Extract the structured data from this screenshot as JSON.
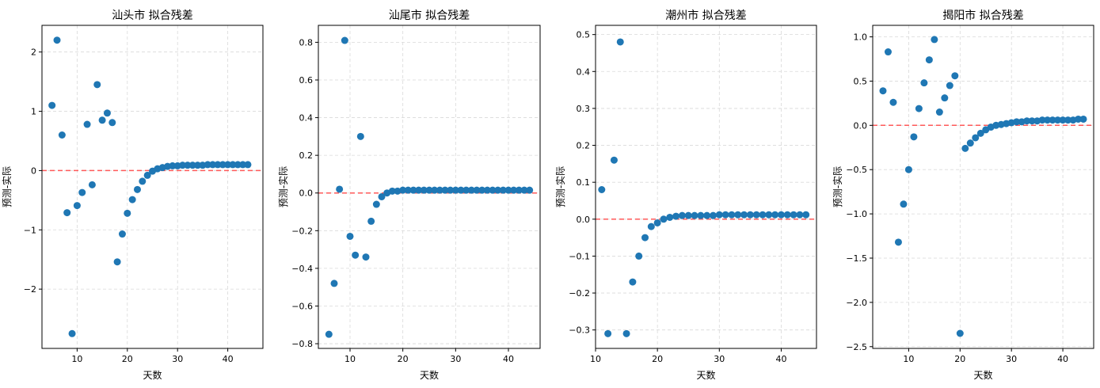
{
  "chart_data": [
    {
      "type": "scatter",
      "title": "汕头市 拟合残差",
      "xlabel": "天数",
      "ylabel": "预测-实际",
      "xlim": [
        3,
        47
      ],
      "ylim": [
        -3.0,
        2.45
      ],
      "xticks": [
        10,
        20,
        30,
        40
      ],
      "yticks": [
        -2,
        -1,
        0,
        1,
        2
      ],
      "reference_line": 0,
      "grid": true,
      "x": [
        5,
        6,
        7,
        8,
        9,
        10,
        11,
        12,
        13,
        14,
        15,
        16,
        17,
        18,
        19,
        20,
        21,
        22,
        23,
        24,
        25,
        26,
        27,
        28,
        29,
        30,
        31,
        32,
        33,
        34,
        35,
        36,
        37,
        38,
        39,
        40,
        41,
        42,
        43,
        44
      ],
      "y": [
        1.1,
        2.2,
        0.6,
        -0.71,
        -2.75,
        -0.59,
        -0.37,
        0.78,
        -0.24,
        1.45,
        0.85,
        0.97,
        0.81,
        -1.54,
        -1.07,
        -0.72,
        -0.49,
        -0.32,
        -0.18,
        -0.08,
        -0.01,
        0.03,
        0.05,
        0.07,
        0.08,
        0.08,
        0.09,
        0.09,
        0.09,
        0.09,
        0.09,
        0.1,
        0.1,
        0.1,
        0.1,
        0.1,
        0.1,
        0.1,
        0.1,
        0.1
      ]
    },
    {
      "type": "scatter",
      "title": "汕尾市 拟合残差",
      "xlabel": "天数",
      "ylabel": "预测-实际",
      "xlim": [
        4,
        46
      ],
      "ylim": [
        -0.825,
        0.89
      ],
      "xticks": [
        10,
        20,
        30,
        40
      ],
      "yticks": [
        -0.8,
        -0.6,
        -0.4,
        -0.2,
        0.0,
        0.2,
        0.4,
        0.6,
        0.8
      ],
      "reference_line": 0,
      "grid": true,
      "x": [
        6,
        7,
        8,
        9,
        10,
        11,
        12,
        13,
        14,
        15,
        16,
        17,
        18,
        19,
        20,
        21,
        22,
        23,
        24,
        25,
        26,
        27,
        28,
        29,
        30,
        31,
        32,
        33,
        34,
        35,
        36,
        37,
        38,
        39,
        40,
        41,
        42,
        43,
        44
      ],
      "y": [
        -0.75,
        -0.48,
        0.02,
        0.81,
        -0.23,
        -0.33,
        0.3,
        -0.34,
        -0.15,
        -0.06,
        -0.02,
        0.0,
        0.01,
        0.01,
        0.015,
        0.015,
        0.015,
        0.015,
        0.015,
        0.015,
        0.015,
        0.015,
        0.015,
        0.015,
        0.015,
        0.015,
        0.015,
        0.015,
        0.015,
        0.015,
        0.015,
        0.015,
        0.015,
        0.015,
        0.015,
        0.015,
        0.015,
        0.015,
        0.015
      ]
    },
    {
      "type": "scatter",
      "title": "潮州市 拟合残差",
      "xlabel": "天数",
      "ylabel": "预测-实际",
      "xlim": [
        10,
        45.7
      ],
      "ylim": [
        -0.35,
        0.525
      ],
      "xticks": [
        10,
        20,
        30,
        40
      ],
      "yticks": [
        -0.3,
        -0.2,
        -0.1,
        0.0,
        0.1,
        0.2,
        0.3,
        0.4,
        0.5
      ],
      "reference_line": 0,
      "grid": true,
      "x": [
        11,
        12,
        13,
        14,
        15,
        16,
        17,
        18,
        19,
        20,
        21,
        22,
        23,
        24,
        25,
        26,
        27,
        28,
        29,
        30,
        31,
        32,
        33,
        34,
        35,
        36,
        37,
        38,
        39,
        40,
        41,
        42,
        43,
        44
      ],
      "y": [
        0.08,
        -0.31,
        0.16,
        0.48,
        -0.31,
        -0.17,
        -0.1,
        -0.05,
        -0.02,
        -0.01,
        0.0,
        0.005,
        0.008,
        0.01,
        0.01,
        0.01,
        0.01,
        0.01,
        0.01,
        0.012,
        0.012,
        0.012,
        0.012,
        0.012,
        0.012,
        0.012,
        0.012,
        0.012,
        0.012,
        0.012,
        0.012,
        0.012,
        0.012,
        0.012
      ]
    },
    {
      "type": "scatter",
      "title": "揭阳市 拟合残差",
      "xlabel": "天数",
      "ylabel": "预测-实际",
      "xlim": [
        3,
        46
      ],
      "ylim": [
        -2.52,
        1.13
      ],
      "xticks": [
        10,
        20,
        30,
        40
      ],
      "yticks": [
        -2.5,
        -2.0,
        -1.5,
        -1.0,
        -0.5,
        0.0,
        0.5,
        1.0
      ],
      "reference_line": 0,
      "grid": true,
      "x": [
        5,
        6,
        7,
        8,
        9,
        10,
        11,
        12,
        13,
        14,
        15,
        16,
        17,
        18,
        19,
        20,
        21,
        22,
        23,
        24,
        25,
        26,
        27,
        28,
        29,
        30,
        31,
        32,
        33,
        34,
        35,
        36,
        37,
        38,
        39,
        40,
        41,
        42,
        43,
        44
      ],
      "y": [
        0.39,
        0.83,
        0.26,
        -1.32,
        -0.89,
        -0.5,
        -0.13,
        0.19,
        0.48,
        0.74,
        0.97,
        0.15,
        0.31,
        0.45,
        0.56,
        -2.35,
        -0.26,
        -0.2,
        -0.14,
        -0.09,
        -0.05,
        -0.02,
        0.0,
        0.01,
        0.02,
        0.03,
        0.04,
        0.04,
        0.05,
        0.05,
        0.05,
        0.06,
        0.06,
        0.06,
        0.06,
        0.06,
        0.06,
        0.06,
        0.07,
        0.07
      ]
    }
  ],
  "colors": {
    "point": "#1f77b4",
    "reference_line": "#ff5a5a",
    "grid": "#d9d9d9",
    "axis": "#000000"
  }
}
